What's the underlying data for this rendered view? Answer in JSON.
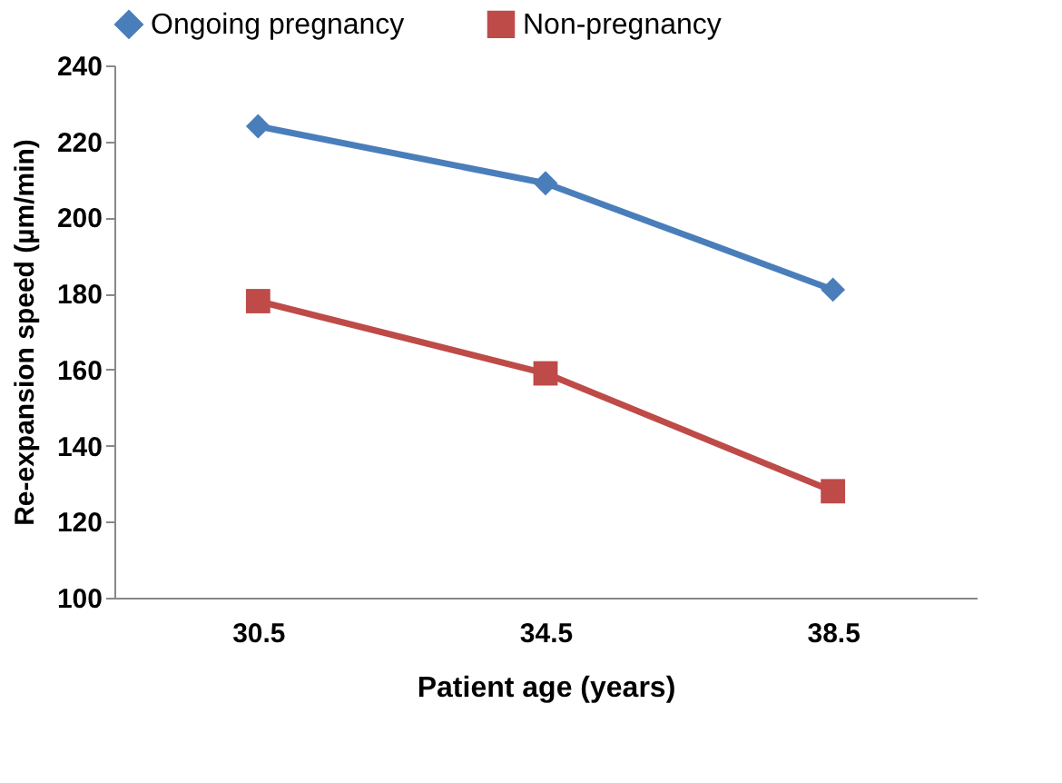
{
  "chart_data": {
    "type": "line",
    "xlabel": "Patient age (years)",
    "ylabel": "Re-expansion speed (µm/min)",
    "categories": [
      "30.5",
      "34.5",
      "38.5"
    ],
    "series": [
      {
        "name": "Ongoing pregnancy",
        "color": "#4a7ebb",
        "marker": "diamond",
        "values": [
          224,
          209,
          181
        ]
      },
      {
        "name": "Non-pregnancy",
        "color": "#be4b48",
        "marker": "square",
        "values": [
          178,
          159,
          128
        ]
      }
    ],
    "ylim": [
      100,
      240
    ],
    "yticks": [
      100,
      120,
      140,
      160,
      180,
      200,
      220,
      240
    ],
    "grid": false,
    "legend": "top",
    "line_style": "solid"
  }
}
